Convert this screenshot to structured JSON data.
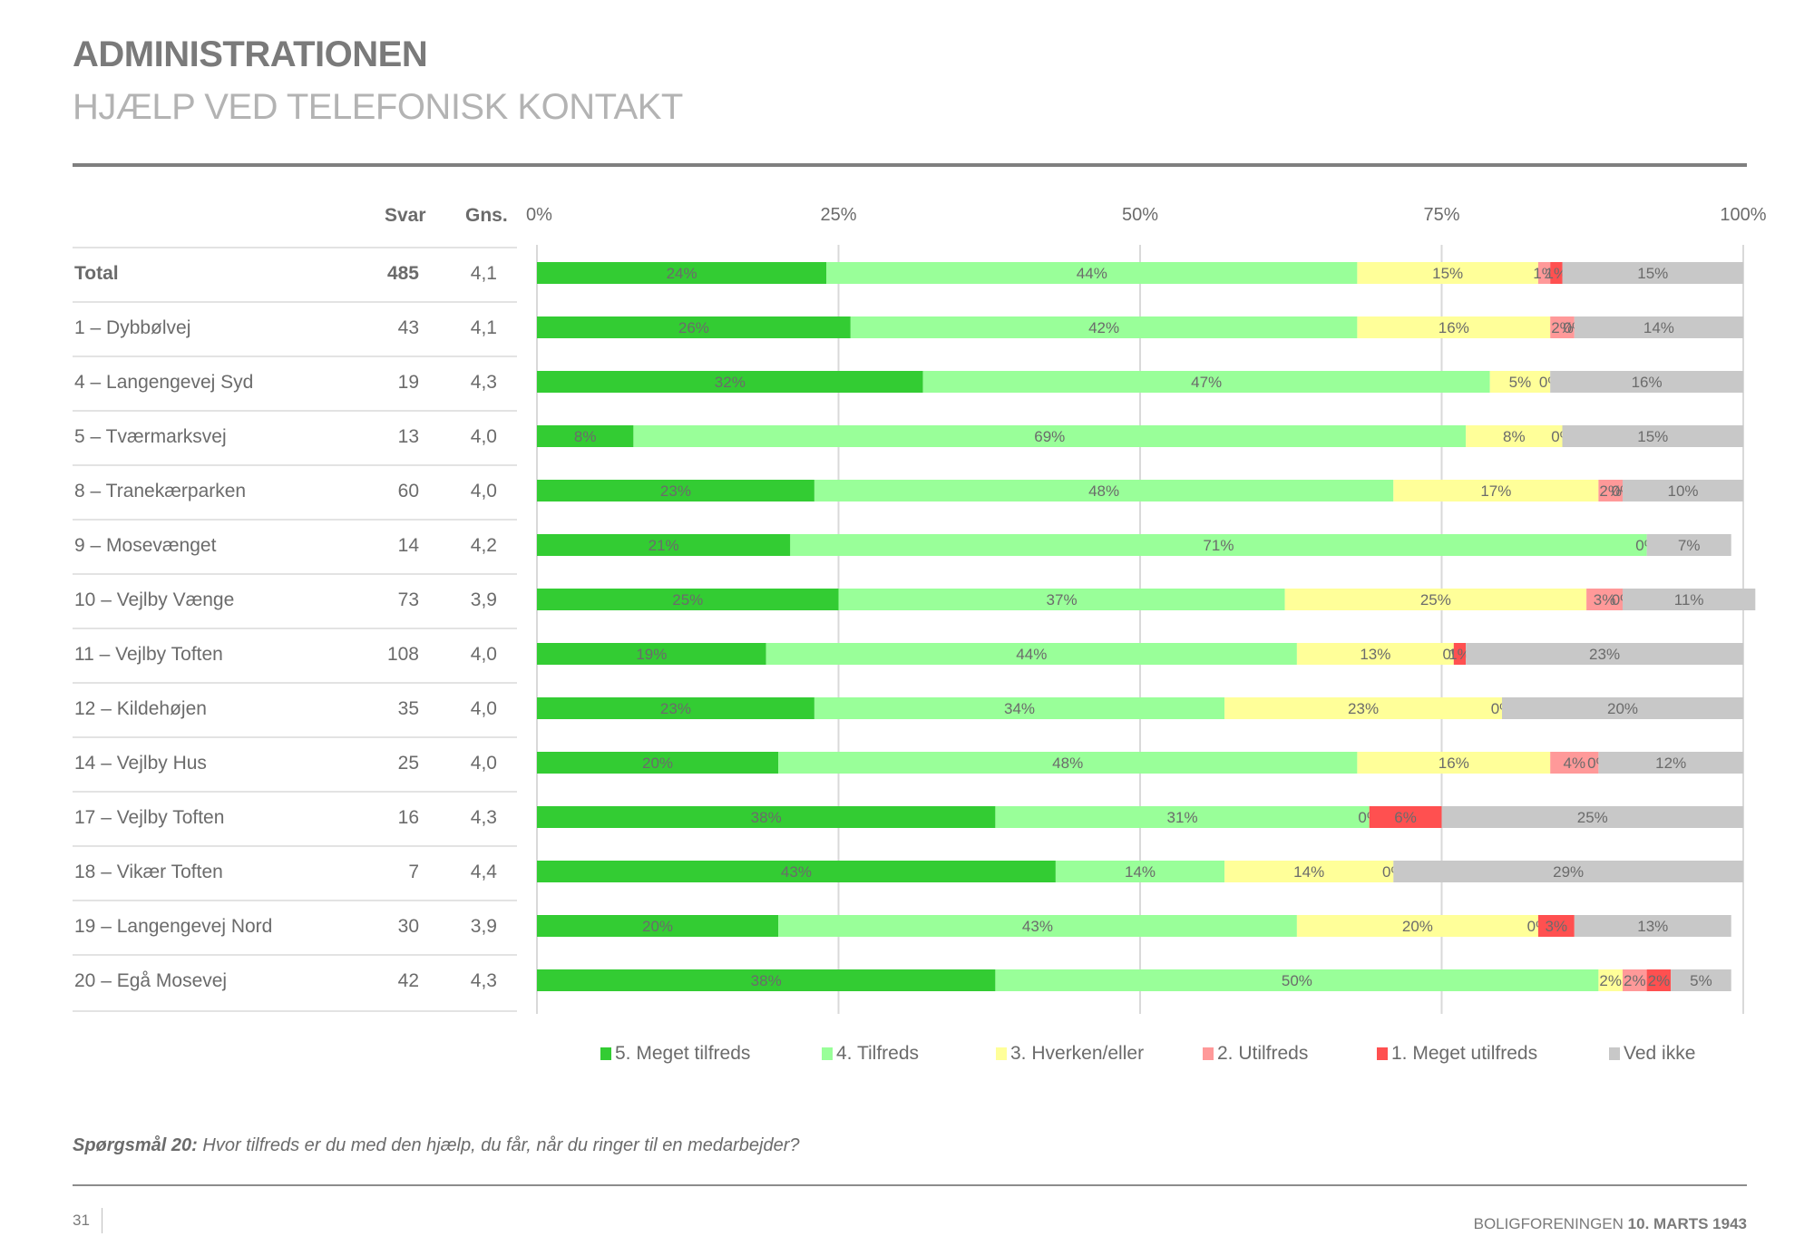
{
  "header": {
    "title": "ADMINISTRATIONEN",
    "subtitle": "HJÆLP VED TELEFONISK KONTAKT"
  },
  "table": {
    "col_svar": "Svar",
    "col_gns": "Gns."
  },
  "colors": {
    "meget_tilfreds": "#33cc33",
    "tilfreds": "#99ff99",
    "hverken_eller": "#ffff99",
    "utilfreds": "#ff9999",
    "meget_utilfreds": "#ff5050",
    "ved_ikke": "#c8c8c8",
    "text": "#6b6b6b",
    "grid": "#d9d9d9"
  },
  "chart_data": {
    "type": "bar",
    "orientation": "horizontal",
    "stacked": true,
    "title": "Hvor tilfreds er du med den hjælp, du får, når du ringer til en medarbejder?",
    "xlabel": "",
    "ylabel": "",
    "xlim": [
      0,
      100
    ],
    "x_ticks": [
      "0%",
      "25%",
      "50%",
      "75%",
      "100%"
    ],
    "grid": true,
    "legend_position": "bottom",
    "categories": [
      "Total",
      "1 – Dybbølvej",
      "4 – Langengevej Syd",
      "5 – Tværmarksvej",
      "8 – Tranekærparken",
      "9 – Mosevænget",
      "10 – Vejlby Vænge",
      "11 – Vejlby Toften",
      "12 – Kildehøjen",
      "14 – Vejlby Hus",
      "17 – Vejlby Toften",
      "18 – Vikær Toften",
      "19 – Langengevej Nord",
      "20 – Egå Mosevej"
    ],
    "svar": [
      "485",
      "43",
      "19",
      "13",
      "60",
      "14",
      "73",
      "108",
      "35",
      "25",
      "16",
      "7",
      "30",
      "42"
    ],
    "gns": [
      "4,1",
      "4,1",
      "4,3",
      "4,0",
      "4,0",
      "4,2",
      "3,9",
      "4,0",
      "4,0",
      "4,0",
      "4,3",
      "4,4",
      "3,9",
      "4,3"
    ],
    "series": [
      {
        "name": "5. Meget tilfreds",
        "color": "#33cc33",
        "values": [
          24,
          26,
          32,
          8,
          23,
          21,
          25,
          19,
          23,
          20,
          38,
          43,
          20,
          38
        ],
        "labels": [
          "24%",
          "26%",
          "32%",
          "8%",
          "23%",
          "21%",
          "25%",
          "19%",
          "23%",
          "20%",
          "38%",
          "43%",
          "20%",
          "38%"
        ]
      },
      {
        "name": "4. Tilfreds",
        "color": "#99ff99",
        "values": [
          44,
          42,
          47,
          69,
          48,
          71,
          37,
          44,
          34,
          48,
          31,
          14,
          43,
          50
        ],
        "labels": [
          "44%",
          "42%",
          "47%",
          "69%",
          "48%",
          "71%",
          "37%",
          "44%",
          "34%",
          "48%",
          "31%",
          "14%",
          "43%",
          "50%"
        ]
      },
      {
        "name": "3. Hverken/eller",
        "color": "#ffff99",
        "values": [
          15,
          16,
          5,
          8,
          17,
          0,
          25,
          13,
          23,
          16,
          0,
          14,
          20,
          2
        ],
        "labels": [
          "15%",
          "16%",
          "5%",
          "8%",
          "17%",
          "",
          "25%",
          "13%",
          "23%",
          "16%",
          "",
          "14%",
          "20%",
          "2%"
        ]
      },
      {
        "name": "2. Utilfreds",
        "color": "#ff9999",
        "values": [
          1,
          2,
          0,
          0,
          2,
          0,
          3,
          0,
          0,
          4,
          0,
          0,
          0,
          2
        ],
        "labels": [
          "1%",
          "2%",
          "0%",
          "0%",
          "2%",
          "0%",
          "3%",
          "0%",
          "0%",
          "4%",
          "0%",
          "0%",
          "0%",
          "2%"
        ]
      },
      {
        "name": "1. Meget utilfreds",
        "color": "#ff5050",
        "values": [
          1,
          0,
          0,
          0,
          0,
          0,
          0,
          1,
          0,
          0,
          6,
          0,
          3,
          2
        ],
        "labels": [
          "1%",
          "0%",
          "",
          "",
          "0%",
          "",
          "0%",
          "1%",
          "",
          "0%",
          "6%",
          "",
          "3%",
          "2%"
        ]
      },
      {
        "name": "Ved ikke",
        "color": "#c8c8c8",
        "values": [
          15,
          14,
          16,
          15,
          10,
          7,
          11,
          23,
          20,
          12,
          25,
          29,
          13,
          5
        ],
        "labels": [
          "15%",
          "14%",
          "16%",
          "15%",
          "10%",
          "7%",
          "11%",
          "23%",
          "20%",
          "12%",
          "25%",
          "29%",
          "13%",
          "5%"
        ]
      }
    ]
  },
  "legend": [
    {
      "label": "5. Meget tilfreds",
      "color": "#33cc33"
    },
    {
      "label": "4. Tilfreds",
      "color": "#99ff99"
    },
    {
      "label": "3. Hverken/eller",
      "color": "#ffff99"
    },
    {
      "label": "2. Utilfreds",
      "color": "#ff9999"
    },
    {
      "label": "1. Meget utilfreds",
      "color": "#ff5050"
    },
    {
      "label": "Ved ikke",
      "color": "#c8c8c8"
    }
  ],
  "question": {
    "prefix": "Spørgsmål 20:",
    "text": " Hvor tilfreds er du med den hjælp, du får, når du ringer til en medarbejder?"
  },
  "footer": {
    "page_number": "31",
    "org": "BOLIGFORENINGEN ",
    "date": "10. MARTS 1943"
  }
}
